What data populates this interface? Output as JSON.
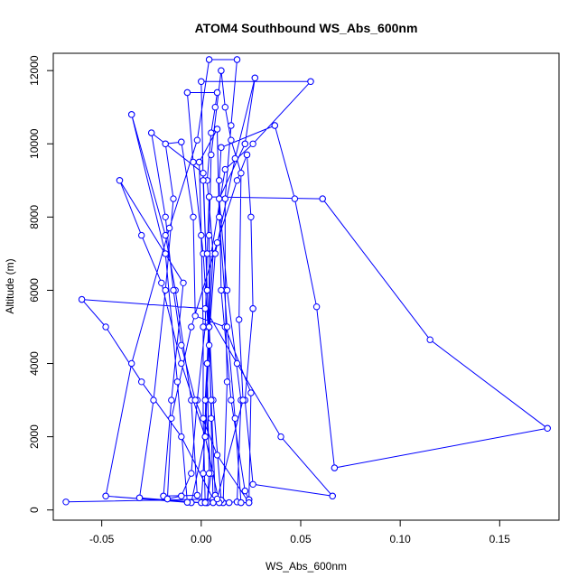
{
  "chart_data": {
    "type": "line",
    "title": "ATOM4 Southbound WS_Abs_600nm",
    "xlabel": "WS_Abs_600nm",
    "ylabel": "Altitude (m)",
    "xlim": [
      -0.07,
      0.175
    ],
    "ylim": [
      0,
      12500
    ],
    "x_ticks": [
      -0.05,
      0.0,
      0.05,
      0.1,
      0.15
    ],
    "x_tick_labels": [
      "-0.05",
      "0.00",
      "0.05",
      "0.10",
      "0.15"
    ],
    "y_ticks": [
      0,
      2000,
      4000,
      6000,
      8000,
      10000,
      12000
    ],
    "y_tick_labels": [
      "0",
      "2000",
      "4000",
      "6000",
      "8000",
      "10000",
      "12000"
    ],
    "grid": false,
    "marker": "open-circle",
    "color": "#0000ff",
    "series": [
      {
        "points": [
          [
            0.003,
            200
          ],
          [
            0.005,
            1000
          ],
          [
            0.002,
            3000
          ],
          [
            0.004,
            5000
          ],
          [
            0.006,
            7000
          ],
          [
            0.003,
            9000
          ],
          [
            0.005,
            10300
          ],
          [
            0.007,
            11000
          ],
          [
            0.008,
            11400
          ],
          [
            0.008,
            11400
          ],
          [
            -0.007,
            11400
          ],
          [
            -0.007,
            11400
          ],
          [
            -0.004,
            9500
          ],
          [
            0.001,
            7000
          ],
          [
            0.004,
            4500
          ],
          [
            0.002,
            2000
          ],
          [
            -0.005,
            200
          ],
          [
            -0.005,
            200
          ],
          [
            -0.048,
            380
          ],
          [
            -0.048,
            380
          ],
          [
            -0.035,
            4000
          ],
          [
            -0.016,
            7700
          ],
          [
            -0.002,
            10100
          ],
          [
            0.004,
            12300
          ],
          [
            0.004,
            12300
          ],
          [
            0.018,
            12300
          ],
          [
            0.018,
            12300
          ],
          [
            0.015,
            10500
          ],
          [
            0.012,
            8500
          ],
          [
            0.012,
            6000
          ],
          [
            0.013,
            3500
          ],
          [
            0.011,
            200
          ],
          [
            0.011,
            200
          ],
          [
            0.01,
            270
          ],
          [
            0.01,
            270
          ],
          [
            0.006,
            3000
          ],
          [
            0.003,
            6000
          ],
          [
            0.001,
            9000
          ],
          [
            0.0,
            11700
          ],
          [
            0.0,
            11700
          ],
          [
            0.055,
            11700
          ],
          [
            0.055,
            11700
          ],
          [
            0.026,
            10000
          ],
          [
            0.012,
            9300
          ],
          [
            0.005,
            7000
          ],
          [
            0.003,
            4000
          ],
          [
            0.004,
            1000
          ],
          [
            0.003,
            200
          ],
          [
            0.003,
            200
          ],
          [
            -0.007,
            210
          ],
          [
            -0.007,
            210
          ],
          [
            -0.012,
            3500
          ],
          [
            -0.018,
            7000
          ],
          [
            -0.035,
            10800
          ],
          [
            -0.035,
            10800
          ],
          [
            -0.018,
            7500
          ],
          [
            -0.013,
            6000
          ],
          [
            -0.005,
            3000
          ],
          [
            -0.002,
            400
          ],
          [
            -0.002,
            400
          ],
          [
            -0.019,
            380
          ],
          [
            -0.019,
            380
          ],
          [
            -0.015,
            3000
          ],
          [
            -0.009,
            6200
          ],
          [
            -0.041,
            9000
          ],
          [
            -0.041,
            9000
          ],
          [
            -0.03,
            7500
          ],
          [
            -0.02,
            6200
          ],
          [
            -0.01,
            4000
          ],
          [
            0.002,
            2000
          ],
          [
            0.009,
            200
          ],
          [
            0.009,
            200
          ],
          [
            0.018,
            220
          ],
          [
            0.018,
            220
          ],
          [
            0.02,
            3000
          ],
          [
            0.013,
            6000
          ],
          [
            0.009,
            8500
          ],
          [
            0.022,
            10000
          ],
          [
            0.022,
            10000
          ],
          [
            0.027,
            11800
          ],
          [
            0.027,
            11800
          ],
          [
            0.017,
            9600
          ],
          [
            0.007,
            7000
          ],
          [
            0.003,
            4000
          ],
          [
            0.001,
            1000
          ],
          [
            0.0,
            200
          ],
          [
            0.0,
            200
          ],
          [
            -0.031,
            330
          ],
          [
            -0.031,
            330
          ],
          [
            -0.024,
            3000
          ],
          [
            -0.018,
            6000
          ],
          [
            -0.014,
            8500
          ],
          [
            -0.018,
            10000
          ],
          [
            -0.018,
            10000
          ],
          [
            -0.01,
            10050
          ],
          [
            -0.01,
            10050
          ],
          [
            -0.004,
            8000
          ],
          [
            -0.003,
            5300
          ],
          [
            0.012,
            5000
          ],
          [
            0.025,
            3200
          ],
          [
            0.024,
            280
          ],
          [
            0.024,
            280
          ],
          [
            0.022,
            520
          ],
          [
            0.022,
            520
          ],
          [
            0.015,
            3000
          ],
          [
            0.01,
            6000
          ],
          [
            0.009,
            9000
          ],
          [
            0.01,
            9900
          ],
          [
            0.01,
            9900
          ],
          [
            0.037,
            10500
          ],
          [
            0.037,
            10500
          ],
          [
            0.047,
            8500
          ],
          [
            0.058,
            5550
          ],
          [
            0.067,
            1150
          ],
          [
            0.067,
            1150
          ],
          [
            0.174,
            2230
          ],
          [
            0.174,
            2230
          ],
          [
            0.115,
            4650
          ],
          [
            0.061,
            8500
          ],
          [
            0.061,
            8500
          ],
          [
            0.004,
            8550
          ],
          [
            0.004,
            8550
          ],
          [
            0.003,
            7000
          ],
          [
            0.002,
            5000
          ],
          [
            -0.002,
            3000
          ],
          [
            -0.005,
            1000
          ],
          [
            -0.01,
            380
          ],
          [
            -0.01,
            380
          ],
          [
            -0.017,
            300
          ],
          [
            -0.017,
            300
          ],
          [
            -0.015,
            2500
          ],
          [
            -0.005,
            5000
          ],
          [
            0.008,
            7300
          ],
          [
            0.018,
            9000
          ],
          [
            0.023,
            9700
          ],
          [
            0.023,
            9700
          ],
          [
            0.025,
            8000
          ],
          [
            0.026,
            5500
          ],
          [
            0.026,
            5500
          ],
          [
            0.022,
            3000
          ],
          [
            0.026,
            700
          ],
          [
            0.066,
            380
          ],
          [
            0.066,
            380
          ],
          [
            0.04,
            2000
          ],
          [
            0.018,
            4000
          ],
          [
            0.002,
            5500
          ],
          [
            -0.06,
            5750
          ],
          [
            -0.06,
            5750
          ],
          [
            -0.048,
            5000
          ],
          [
            -0.03,
            3500
          ],
          [
            -0.01,
            2000
          ],
          [
            0.006,
            300
          ],
          [
            0.014,
            200
          ],
          [
            0.014,
            200
          ],
          [
            0.007,
            400
          ],
          [
            0.007,
            400
          ],
          [
            0.005,
            3000
          ],
          [
            0.003,
            6000
          ],
          [
            0.001,
            9200
          ],
          [
            -0.025,
            10300
          ],
          [
            -0.025,
            10300
          ],
          [
            -0.018,
            8000
          ],
          [
            -0.014,
            6000
          ],
          [
            -0.01,
            4500
          ],
          [
            -0.003,
            3000
          ],
          [
            0.008,
            1500
          ],
          [
            0.024,
            200
          ],
          [
            0.024,
            200
          ],
          [
            0.02,
            200
          ],
          [
            0.02,
            200
          ],
          [
            0.017,
            2500
          ],
          [
            0.013,
            5000
          ],
          [
            0.009,
            8000
          ],
          [
            0.008,
            10400
          ],
          [
            0.008,
            10400
          ],
          [
            -0.001,
            9500
          ],
          [
            -0.001,
            9500
          ],
          [
            0.0,
            7500
          ],
          [
            0.001,
            5000
          ],
          [
            0.001,
            2500
          ],
          [
            0.002,
            200
          ],
          [
            0.002,
            200
          ],
          [
            0.006,
            200
          ],
          [
            0.006,
            200
          ],
          [
            0.005,
            2500
          ],
          [
            0.004,
            5000
          ],
          [
            0.004,
            7500
          ],
          [
            0.005,
            9700
          ],
          [
            0.01,
            12000
          ],
          [
            0.01,
            12000
          ],
          [
            0.012,
            11000
          ],
          [
            0.015,
            10100
          ],
          [
            0.02,
            9200
          ],
          [
            0.019,
            5200
          ],
          [
            0.021,
            3000
          ],
          [
            0.008,
            300
          ],
          [
            -0.068,
            220
          ]
        ]
      }
    ]
  }
}
